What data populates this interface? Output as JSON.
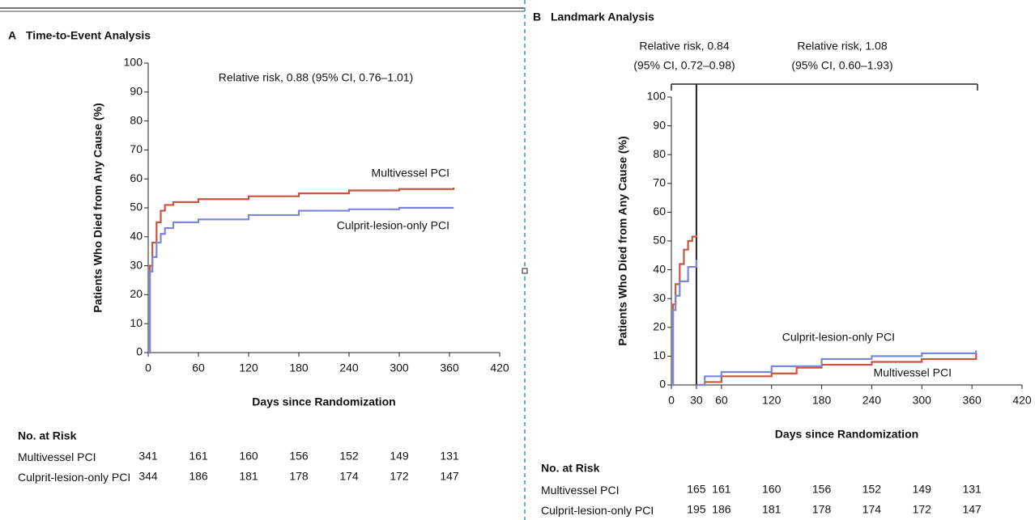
{
  "chart_data": [
    {
      "type": "line",
      "panel": "A",
      "title": "Time-to-Event Analysis",
      "x_label": "Days since Randomization",
      "y_label": "Patients Who Died from Any Cause (%)",
      "xlim": [
        0,
        420
      ],
      "xticks": [
        0,
        60,
        120,
        180,
        240,
        300,
        360,
        420
      ],
      "ylim": [
        0,
        100
      ],
      "yticks": [
        0,
        10,
        20,
        30,
        40,
        50,
        60,
        70,
        80,
        90,
        100
      ],
      "annotations": [
        "Relative risk, 0.88 (95% CI, 0.76–1.01)"
      ],
      "series": [
        {
          "name": "Multivessel PCI",
          "color": "#c8553d",
          "x": [
            0,
            2,
            5,
            10,
            15,
            20,
            30,
            60,
            120,
            180,
            240,
            300,
            365
          ],
          "values": [
            0,
            30,
            38,
            45,
            49,
            51,
            52,
            53,
            54,
            55,
            56,
            56.5,
            57
          ]
        },
        {
          "name": "Culprit-lesion-only PCI",
          "color": "#7b86d4",
          "x": [
            0,
            2,
            5,
            10,
            15,
            20,
            30,
            60,
            120,
            180,
            240,
            300,
            365
          ],
          "values": [
            0,
            28,
            33,
            38,
            41,
            43,
            45,
            46,
            47.5,
            49,
            49.5,
            50,
            50
          ]
        }
      ],
      "risk_table": {
        "title": "No. at Risk",
        "values": [
          [
            341,
            161,
            160,
            156,
            152,
            149,
            131
          ],
          [
            344,
            186,
            181,
            178,
            174,
            172,
            147
          ]
        ]
      }
    },
    {
      "type": "line",
      "panel": "B",
      "title": "Landmark Analysis",
      "x_label": "Days since Randomization",
      "y_label": "Patients Who Died from Any Cause (%)",
      "xlim": [
        0,
        420
      ],
      "xticks": [
        0,
        30,
        60,
        120,
        180,
        240,
        300,
        360,
        420
      ],
      "ylim": [
        0,
        100
      ],
      "yticks": [
        0,
        10,
        20,
        30,
        40,
        50,
        60,
        70,
        80,
        90,
        100
      ],
      "annotations": [
        "Relative risk, 0.84",
        "(95% CI, 0.72–0.98)",
        "Relative risk, 1.08",
        "(95% CI, 0.60–1.93)"
      ],
      "series": [
        {
          "name": "Multivessel PCI",
          "color": "#c8553d",
          "x": [
            0,
            2,
            5,
            10,
            15,
            20,
            25,
            30,
            30,
            30,
            40,
            60,
            120,
            150,
            180,
            240,
            300,
            365
          ],
          "values": [
            0,
            28,
            35,
            42,
            47,
            50,
            51.5,
            52,
            null,
            0,
            1,
            3,
            4,
            6,
            7,
            8,
            9,
            11
          ]
        },
        {
          "name": "Culprit-lesion-only PCI",
          "color": "#7b86d4",
          "x": [
            0,
            2,
            5,
            10,
            20,
            30,
            30,
            30,
            40,
            60,
            120,
            180,
            240,
            300,
            365
          ],
          "values": [
            0,
            26,
            31,
            36,
            41,
            43.5,
            null,
            0,
            3,
            4.5,
            6.5,
            9,
            10,
            11,
            12
          ]
        }
      ],
      "risk_table": {
        "title": "No. at Risk",
        "values": [
          [
            165,
            161,
            160,
            156,
            152,
            149,
            131
          ],
          [
            195,
            186,
            181,
            178,
            174,
            172,
            147
          ]
        ]
      }
    }
  ]
}
